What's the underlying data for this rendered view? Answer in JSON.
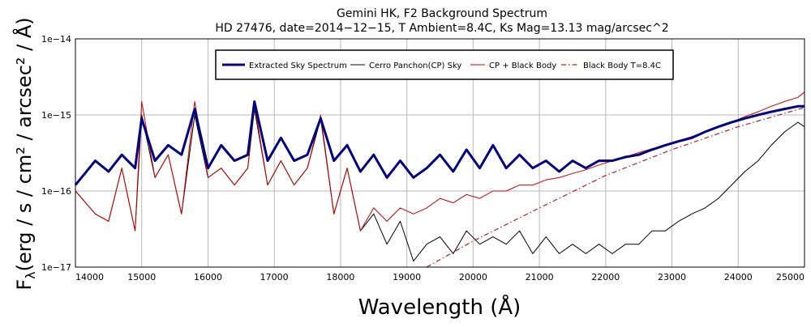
{
  "chart_data": {
    "type": "line",
    "title": "Gemini HK, F2 Background Spectrum",
    "subtitle": "HD 27476, date=2014−12−15, T Ambient=8.4C, Ks Mag=13.13 mag/arcsec^2",
    "xlabel": "Wavelength (Å)",
    "ylabel": {
      "main": "F",
      "sub": "λ",
      "units": "(erg / s / cm² / arcsec² / Å)"
    },
    "xlim": [
      14000,
      25000
    ],
    "ylim": [
      1e-17,
      1e-14
    ],
    "y_scale": "log",
    "grid": true,
    "legend_position": "top",
    "x_ticks": [
      "14000",
      "15000",
      "16000",
      "17000",
      "18000",
      "19000",
      "20000",
      "21000",
      "22000",
      "23000",
      "24000",
      "25000"
    ],
    "y_ticks": [
      "1e−14",
      "1e−15",
      "1e−16",
      "1e−17"
    ],
    "series": [
      {
        "name": "Extracted Sky Spectrum",
        "color": "#000080",
        "style": "solid-thick",
        "x": [
          14000,
          14300,
          14500,
          14700,
          14900,
          15000,
          15200,
          15400,
          15600,
          15800,
          16000,
          16200,
          16400,
          16600,
          16700,
          16900,
          17100,
          17300,
          17500,
          17700,
          17900,
          18100,
          18300,
          18500,
          18700,
          18900,
          19100,
          19300,
          19500,
          19700,
          19900,
          20100,
          20300,
          20500,
          20700,
          20900,
          21100,
          21300,
          21500,
          21700,
          21900,
          22100,
          22300,
          22500,
          22700,
          22900,
          23100,
          23300,
          23500,
          23700,
          23900,
          24100,
          24300,
          24500,
          24700,
          24900,
          25000
        ],
        "y": [
          1.2e-16,
          2.5e-16,
          1.8e-16,
          3e-16,
          2e-16,
          9e-16,
          2.5e-16,
          4e-16,
          3e-16,
          1.2e-15,
          2e-16,
          4e-16,
          2.5e-16,
          3e-16,
          1.5e-15,
          2.5e-16,
          5e-16,
          2.5e-16,
          3e-16,
          9e-16,
          2.5e-16,
          4e-16,
          1.8e-16,
          3e-16,
          1.5e-16,
          2.5e-16,
          1.5e-16,
          2e-16,
          3e-16,
          1.8e-16,
          3.5e-16,
          2e-16,
          4e-16,
          2e-16,
          3e-16,
          2e-16,
          2.5e-16,
          1.8e-16,
          2.5e-16,
          2e-16,
          2.5e-16,
          2.5e-16,
          2.8e-16,
          3e-16,
          3.5e-16,
          4e-16,
          4.5e-16,
          5e-16,
          6e-16,
          7e-16,
          8e-16,
          9e-16,
          1e-15,
          1.1e-15,
          1.2e-15,
          1.3e-15,
          1.3e-15
        ]
      },
      {
        "name": "Cerro Panchon(CP) Sky",
        "color": "#000000",
        "style": "solid-thin",
        "x": [
          14000,
          14300,
          14500,
          14700,
          14900,
          15000,
          15200,
          15400,
          15600,
          15800,
          16000,
          16200,
          16400,
          16600,
          16700,
          16900,
          17100,
          17300,
          17500,
          17700,
          17900,
          18100,
          18300,
          18500,
          18700,
          18900,
          19100,
          19300,
          19500,
          19700,
          19900,
          20100,
          20300,
          20500,
          20700,
          20900,
          21100,
          21300,
          21500,
          21700,
          21900,
          22100,
          22300,
          22500,
          22700,
          22900,
          23100,
          23300,
          23500,
          23700,
          23900,
          24100,
          24300,
          24500,
          24700,
          24900,
          25000
        ],
        "y": [
          1e-16,
          5e-17,
          4e-17,
          2e-16,
          3e-17,
          1e-15,
          1.5e-16,
          3e-16,
          5e-17,
          1e-15,
          1.5e-16,
          2e-16,
          1.2e-16,
          2e-16,
          1.2e-15,
          1.2e-16,
          2.5e-16,
          1.2e-16,
          2e-16,
          9e-16,
          5e-17,
          2e-16,
          3e-17,
          5e-17,
          2e-17,
          4e-17,
          1.2e-17,
          2e-17,
          2.5e-17,
          1.5e-17,
          3e-17,
          2e-17,
          2.5e-17,
          2e-17,
          3e-17,
          1.5e-17,
          2.5e-17,
          1.5e-17,
          2e-17,
          1.5e-17,
          2e-17,
          1.5e-17,
          2e-17,
          2e-17,
          3e-17,
          3e-17,
          4e-17,
          5e-17,
          6e-17,
          8e-17,
          1.2e-16,
          1.8e-16,
          2.5e-16,
          4e-16,
          6e-16,
          8e-16,
          7e-16
        ]
      },
      {
        "name": "CP + Black Body",
        "color": "#cc0000",
        "style": "solid-thin",
        "x": [
          14000,
          14300,
          14500,
          14700,
          14900,
          15000,
          15200,
          15400,
          15600,
          15800,
          16000,
          16200,
          16400,
          16600,
          16700,
          16900,
          17100,
          17300,
          17500,
          17700,
          17900,
          18100,
          18300,
          18500,
          18700,
          18900,
          19100,
          19300,
          19500,
          19700,
          19900,
          20100,
          20300,
          20500,
          20700,
          20900,
          21100,
          21300,
          21500,
          21700,
          21900,
          22100,
          22300,
          22500,
          22700,
          22900,
          23100,
          23300,
          23500,
          23700,
          23900,
          24100,
          24300,
          24500,
          24700,
          24900,
          25000
        ],
        "y": [
          1e-16,
          5e-17,
          4e-17,
          2e-16,
          3e-17,
          1.5e-15,
          1.5e-16,
          3e-16,
          5e-17,
          1.5e-15,
          1.5e-16,
          2e-16,
          1.2e-16,
          2e-16,
          1.4e-15,
          1.2e-16,
          2.5e-16,
          1.2e-16,
          2e-16,
          1e-15,
          5e-17,
          2e-16,
          3e-17,
          6e-17,
          4e-17,
          6e-17,
          5e-17,
          6e-17,
          8e-17,
          7e-17,
          9e-17,
          8e-17,
          1e-16,
          1e-16,
          1.2e-16,
          1.2e-16,
          1.4e-16,
          1.5e-16,
          1.7e-16,
          1.9e-16,
          2.2e-16,
          2.5e-16,
          2.8e-16,
          3.2e-16,
          3.6e-16,
          4e-16,
          4.6e-16,
          5.2e-16,
          6e-16,
          7e-16,
          8e-16,
          9.5e-16,
          1.1e-15,
          1.3e-15,
          1.5e-15,
          1.7e-15,
          2e-15
        ]
      },
      {
        "name": "Black Body T=8.4C",
        "color": "#b22222",
        "style": "dash-dot",
        "x": [
          19300,
          20000,
          21000,
          22000,
          23000,
          24000,
          25000
        ],
        "y": [
          1e-17,
          2.2e-17,
          6e-17,
          1.6e-16,
          3.5e-16,
          7e-16,
          1.25e-15
        ]
      }
    ]
  }
}
